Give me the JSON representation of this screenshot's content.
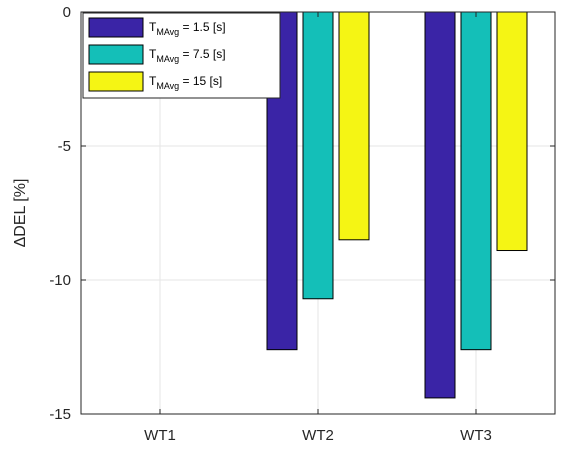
{
  "chart_data": {
    "type": "bar",
    "categories": [
      "WT1",
      "WT2",
      "WT3"
    ],
    "series": [
      {
        "name": "T_MAvg = 1.5 [s]",
        "values": [
          0,
          -12.6,
          -14.4
        ]
      },
      {
        "name": "T_MAvg = 7.5 [s]",
        "values": [
          0,
          -10.7,
          -12.6
        ]
      },
      {
        "name": "T_MAvg = 15 [s]",
        "values": [
          0,
          -8.5,
          -8.9
        ]
      }
    ],
    "legend_labels": [
      {
        "base": "T",
        "sub": "MAvg",
        "rest": " = 1.5 [s]"
      },
      {
        "base": "T",
        "sub": "MAvg",
        "rest": " = 7.5 [s]"
      },
      {
        "base": "T",
        "sub": "MAvg",
        "rest": " = 15 [s]"
      }
    ],
    "colors": [
      "#3a24a6",
      "#14bfb8",
      "#f5f514"
    ],
    "ylabel": "ΔDEL [%]",
    "xlabel": "",
    "ylim": [
      -15,
      0
    ],
    "yticks": [
      0,
      -5,
      -10,
      -15
    ],
    "grid": true,
    "legend_position": "top-left"
  }
}
